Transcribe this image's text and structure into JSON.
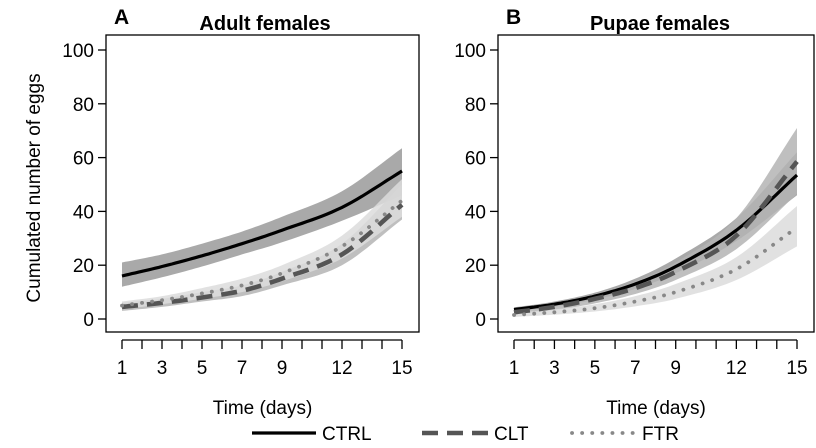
{
  "chart_data": [
    {
      "type": "line",
      "panel_letter": "A",
      "title": "Adult females",
      "xlabel": "Time (days)",
      "ylabel": "Cumulated number of eggs",
      "xlim": [
        1,
        15
      ],
      "ylim": [
        0,
        100
      ],
      "x_ticks": [
        1,
        2,
        3,
        4,
        5,
        6,
        7,
        8,
        9,
        10,
        11,
        12,
        13,
        14,
        15
      ],
      "x_tick_labels": [
        "1",
        "",
        "3",
        "",
        "5",
        "",
        "7",
        "",
        "9",
        "",
        "",
        "12",
        "",
        "",
        "15"
      ],
      "y_ticks": [
        0,
        20,
        40,
        60,
        80,
        100
      ],
      "y_tick_labels": [
        "0",
        "20",
        "40",
        "60",
        "80",
        "100"
      ],
      "x": [
        1,
        3,
        5,
        7,
        9,
        12,
        15
      ],
      "series": [
        {
          "name": "CTRL",
          "style": "solid",
          "color": "#000000",
          "band_color": "#9a9a9a",
          "values": [
            16,
            19.5,
            23.5,
            28,
            33,
            41.5,
            55
          ],
          "lower": [
            12,
            15.5,
            19.5,
            24,
            28.5,
            36.5,
            46
          ],
          "upper": [
            21,
            24,
            28,
            32.5,
            38,
            47.5,
            63.5
          ]
        },
        {
          "name": "CLT",
          "style": "dashed",
          "color": "#555555",
          "band_color": "#b4b4b4",
          "values": [
            4.5,
            6,
            8,
            10.5,
            15,
            24,
            42.5
          ],
          "lower": [
            3,
            4.5,
            6.5,
            8.5,
            12.5,
            20,
            37
          ],
          "upper": [
            6,
            7.5,
            10,
            12.5,
            17.5,
            28,
            50
          ]
        },
        {
          "name": "FTR",
          "style": "dotted",
          "color": "#888888",
          "band_color": "#dcdcdc",
          "values": [
            5,
            7,
            9.5,
            12.5,
            17,
            27,
            44
          ],
          "lower": [
            3.5,
            5.5,
            7.5,
            10,
            14,
            22.5,
            38
          ],
          "upper": [
            6.5,
            8.5,
            11.5,
            15,
            20,
            31,
            52
          ]
        }
      ]
    },
    {
      "type": "line",
      "panel_letter": "B",
      "title": "Pupae females",
      "xlabel": "Time (days)",
      "ylabel": "",
      "xlim": [
        1,
        15
      ],
      "ylim": [
        0,
        100
      ],
      "x_ticks": [
        1,
        2,
        3,
        4,
        5,
        6,
        7,
        8,
        9,
        10,
        11,
        12,
        13,
        14,
        15
      ],
      "x_tick_labels": [
        "1",
        "",
        "3",
        "",
        "5",
        "",
        "7",
        "",
        "9",
        "",
        "",
        "12",
        "",
        "",
        "15"
      ],
      "y_ticks": [
        0,
        20,
        40,
        60,
        80,
        100
      ],
      "y_tick_labels": [
        "0",
        "20",
        "40",
        "60",
        "80",
        "100"
      ],
      "x": [
        1,
        3,
        5,
        7,
        9,
        12,
        15
      ],
      "series": [
        {
          "name": "CTRL",
          "style": "solid",
          "color": "#000000",
          "band_color": "#9a9a9a",
          "values": [
            3.5,
            5.5,
            8.5,
            13,
            19.5,
            33,
            53.5
          ],
          "lower": [
            2.8,
            4.6,
            7.2,
            11.2,
            17,
            29,
            46
          ],
          "upper": [
            4.3,
            6.5,
            9.8,
            15,
            22.5,
            37.5,
            62
          ]
        },
        {
          "name": "CLT",
          "style": "dashed",
          "color": "#555555",
          "band_color": "#b4b4b4",
          "values": [
            2.5,
            4.5,
            7.5,
            11.5,
            17.5,
            31,
            58.5
          ],
          "lower": [
            1.7,
            3.3,
            5.8,
            9.3,
            14.5,
            26,
            46.5
          ],
          "upper": [
            3.4,
            5.8,
            9.3,
            14,
            21,
            37.5,
            71
          ]
        },
        {
          "name": "FTR",
          "style": "dotted",
          "color": "#888888",
          "band_color": "#dcdcdc",
          "values": [
            1.5,
            2.5,
            4,
            6.5,
            10,
            18.5,
            34
          ],
          "lower": [
            0.8,
            1.6,
            2.8,
            4.7,
            7.5,
            14.5,
            27
          ],
          "upper": [
            2.3,
            3.6,
            5.5,
            8.5,
            13,
            23,
            42
          ]
        }
      ]
    }
  ],
  "legend": {
    "placement": "bottom-center",
    "items": [
      {
        "label": "CTRL",
        "style": "solid",
        "color": "#000000"
      },
      {
        "label": "CLT",
        "style": "dashed",
        "color": "#555555"
      },
      {
        "label": "FTR",
        "style": "dotted",
        "color": "#888888"
      }
    ]
  }
}
